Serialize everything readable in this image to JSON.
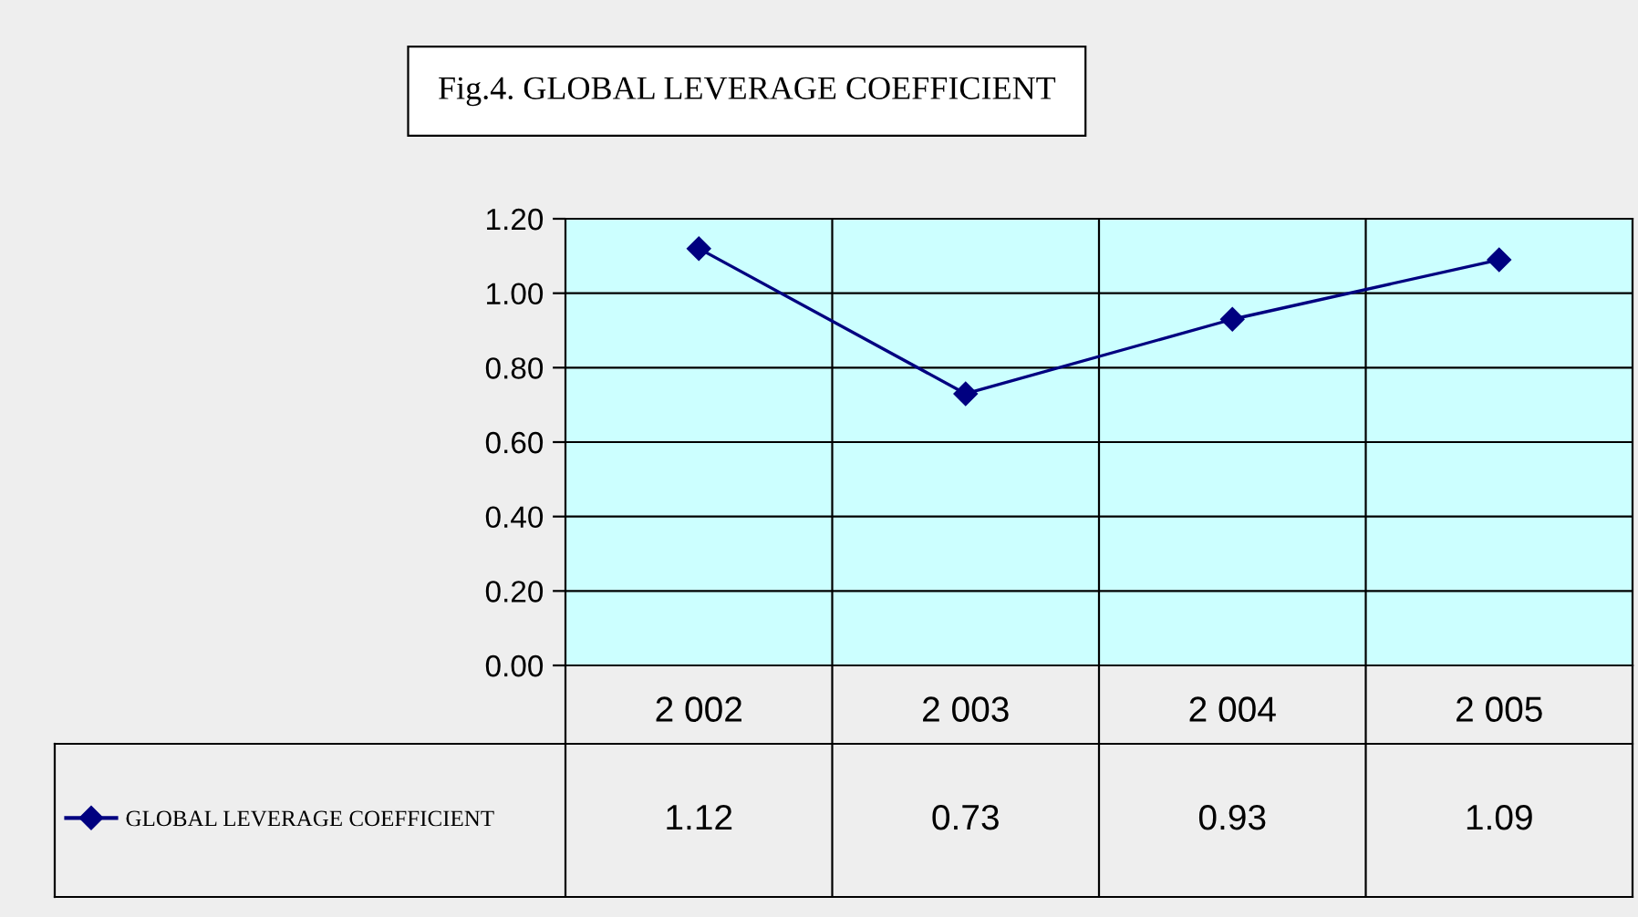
{
  "chart_data": {
    "type": "line",
    "title": "Fig.4. GLOBAL LEVERAGE COEFFICIENT",
    "categories": [
      "2 002",
      "2 003",
      "2 004",
      "2 005"
    ],
    "series": [
      {
        "name": "GLOBAL LEVERAGE COEFFICIENT",
        "color": "#000080",
        "values": [
          1.12,
          0.73,
          0.93,
          1.09
        ]
      }
    ],
    "ylim": [
      0,
      1.2
    ],
    "yticks": [
      "0.00",
      "0.20",
      "0.40",
      "0.60",
      "0.80",
      "1.00",
      "1.20"
    ],
    "grid": "y",
    "legend": "bottom left",
    "marker": "diamond",
    "line_style": "solid",
    "data_labels": true
  }
}
